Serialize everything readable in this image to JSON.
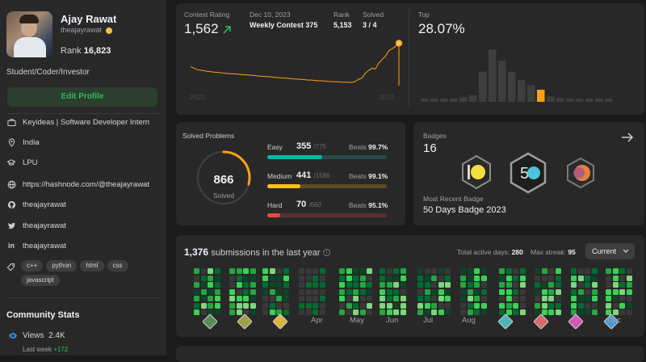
{
  "profile": {
    "name": "Ajay Rawat",
    "username": "theajayrawat",
    "rank_label": "Rank",
    "rank_value": "16,823",
    "bio": "Student/Coder/Investor",
    "edit_label": "Edit Profile"
  },
  "info": [
    {
      "icon": "briefcase-icon",
      "text": "Keyideas | Software Developer Intern"
    },
    {
      "icon": "location-icon",
      "text": "India"
    },
    {
      "icon": "school-icon",
      "text": "LPU"
    },
    {
      "icon": "link-icon",
      "text": "https://hashnode.com/@theajayrawat"
    },
    {
      "icon": "github-icon",
      "text": "theajayrawat"
    },
    {
      "icon": "twitter-icon",
      "text": "theajayrawat"
    },
    {
      "icon": "linkedin-icon",
      "text": "theajayrawat"
    }
  ],
  "skills": [
    "c++",
    "python",
    "html",
    "css",
    "javascript"
  ],
  "community": {
    "title": "Community Stats",
    "views_label": "Views",
    "views_value": "2.4K",
    "lastweek_label": "Last week",
    "lastweek_value": "+172"
  },
  "contest": {
    "rating_label": "Contest Rating",
    "rating_value": "1,562",
    "date": "Dec 10, 2023",
    "contest_name": "Weekly Contest 375",
    "rank_label": "Rank",
    "rank_value": "5,153",
    "solved_label": "Solved",
    "solved_value": "3 / 4",
    "top_label": "Top",
    "top_value": "28.07%",
    "year_start": "2022",
    "year_end": "2023",
    "accent": "#ffa116"
  },
  "rating_series": [
    1495,
    1490,
    1486,
    1484,
    1483,
    1481,
    1480,
    1479,
    1478,
    1477,
    1476,
    1475,
    1474,
    1474,
    1473,
    1472,
    1471,
    1471,
    1470,
    1469,
    1468,
    1467,
    1466,
    1466,
    1465,
    1464,
    1463,
    1462,
    1462,
    1461,
    1460,
    1459,
    1459,
    1458,
    1457,
    1456,
    1456,
    1455,
    1454,
    1454,
    1453,
    1452,
    1452,
    1451,
    1451,
    1450,
    1450,
    1450,
    1449,
    1452,
    1458,
    1462,
    1475,
    1484,
    1490,
    1488,
    1505,
    1515,
    1525,
    1540,
    1546,
    1553,
    1562
  ],
  "distribution": [
    0.05,
    0.05,
    0.05,
    0.05,
    0.08,
    0.12,
    0.55,
    0.95,
    0.75,
    0.55,
    0.4,
    0.3,
    0.22,
    0.1,
    0.07,
    0.05,
    0.05,
    0.04,
    0.04,
    0.03
  ],
  "distribution_highlight": 12,
  "solved": {
    "title": "Solved Problems",
    "total": "866",
    "total_label": "Solved",
    "beats_label": "Beats",
    "rows": [
      {
        "name": "Easy",
        "count": "355",
        "total": "/775",
        "beats": "99.7%",
        "color": "#00b8a3",
        "track": "#2a4745",
        "fraction": 0.458
      },
      {
        "name": "Medium",
        "count": "441",
        "total": "/1586",
        "beats": "99.1%",
        "color": "#ffc01e",
        "track": "#5e4e25",
        "fraction": 0.278
      },
      {
        "name": "Hard",
        "count": "70",
        "total": "/660",
        "beats": "95.1%",
        "color": "#ef4743",
        "track": "#5a3031",
        "fraction": 0.106
      }
    ]
  },
  "badges": {
    "title": "Badges",
    "count": "16",
    "recent_label": "Most Recent Badge",
    "recent_name": "50 Days Badge 2023"
  },
  "submissions": {
    "count": "1,376",
    "title": "submissions in the last year",
    "active_label": "Total active days:",
    "active_value": "280",
    "streak_label": "Max streak:",
    "streak_value": "95",
    "select_value": "Current",
    "months": [
      "Apr",
      "May",
      "Jun",
      "Jul",
      "Aug",
      "Dec"
    ]
  }
}
